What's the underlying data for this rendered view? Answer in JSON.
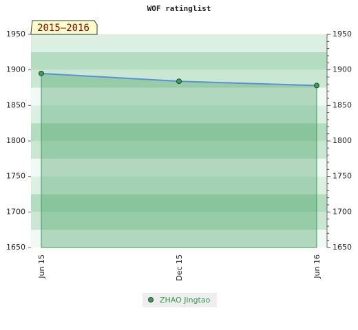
{
  "chart_data": {
    "type": "area",
    "title": "WOF ratinglist",
    "period": "2015–2016",
    "categories": [
      "Jun 15",
      "Dec 15",
      "Jun 16"
    ],
    "series": [
      {
        "name": "ZHAO Jingtao",
        "color": "#3a9c5a",
        "line_color": "#5b8fd6",
        "values": [
          1895,
          1884,
          1878
        ]
      }
    ],
    "ylim": [
      1650,
      1950
    ],
    "yticks": [
      1650,
      1700,
      1750,
      1800,
      1850,
      1900,
      1950
    ],
    "y2lim": [
      1650,
      1950
    ],
    "y2ticks": [
      1650,
      1700,
      1750,
      1800,
      1850,
      1900,
      1950
    ]
  }
}
